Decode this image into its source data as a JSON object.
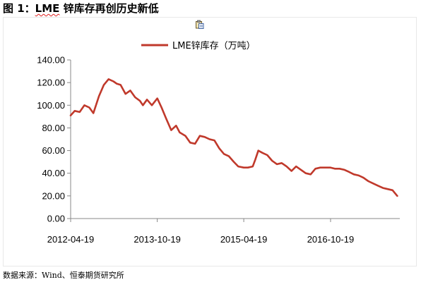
{
  "figure": {
    "title_prefix": "图 1：",
    "title_brand": "LME",
    "title_rest": " 锌库存再创历史新低",
    "source": "数据来源：Wind、恒泰期货研究所"
  },
  "icons": {
    "paste": "paste-clipboard-icon"
  },
  "colors": {
    "series": "#c0392b",
    "axis": "#888888"
  },
  "chart_data": {
    "type": "line",
    "title": "",
    "xlabel": "",
    "ylabel": "",
    "ylim": [
      0,
      140
    ],
    "yticks": [
      0,
      20,
      40,
      60,
      80,
      100,
      120,
      140
    ],
    "ytick_labels": [
      "0.00",
      "20.00",
      "40.00",
      "60.00",
      "80.00",
      "100.00",
      "120.00",
      "140.00"
    ],
    "xlim": [
      "2012-04-19",
      "2017-12-31"
    ],
    "xticks": [
      "2012-04-19",
      "2013-10-19",
      "2015-04-19",
      "2016-10-19"
    ],
    "grid": false,
    "legend": "top",
    "series": [
      {
        "name": "LME锌库存（万吨）",
        "x": [
          "2012-04-19",
          "2012-05-15",
          "2012-06-15",
          "2012-07-15",
          "2012-08-15",
          "2012-09-10",
          "2012-10-15",
          "2012-11-15",
          "2012-12-15",
          "2013-01-15",
          "2013-02-05",
          "2013-03-01",
          "2013-04-01",
          "2013-05-01",
          "2013-06-01",
          "2013-07-01",
          "2013-07-20",
          "2013-08-15",
          "2013-09-15",
          "2013-10-19",
          "2013-11-15",
          "2013-12-15",
          "2014-01-15",
          "2014-02-15",
          "2014-03-10",
          "2014-04-15",
          "2014-05-15",
          "2014-06-15",
          "2014-07-15",
          "2014-08-15",
          "2014-09-15",
          "2014-10-15",
          "2014-11-15",
          "2014-12-15",
          "2015-01-15",
          "2015-02-15",
          "2015-03-15",
          "2015-04-19",
          "2015-05-15",
          "2015-06-15",
          "2015-07-01",
          "2015-07-20",
          "2015-08-15",
          "2015-09-15",
          "2015-10-15",
          "2015-11-15",
          "2015-12-15",
          "2016-01-15",
          "2016-02-15",
          "2016-03-15",
          "2016-04-15",
          "2016-05-15",
          "2016-06-15",
          "2016-07-15",
          "2016-08-15",
          "2016-09-15",
          "2016-10-19",
          "2016-11-15",
          "2016-12-15",
          "2017-01-15",
          "2017-02-15",
          "2017-03-15",
          "2017-04-15",
          "2017-05-15",
          "2017-06-15",
          "2017-07-15",
          "2017-08-15",
          "2017-09-15",
          "2017-10-15",
          "2017-11-15",
          "2017-12-15"
        ],
        "values": [
          91,
          95,
          94,
          100,
          98,
          93,
          108,
          118,
          123,
          121,
          119,
          118,
          110,
          113,
          107,
          104,
          100,
          105,
          100,
          106,
          98,
          88,
          78,
          82,
          76,
          73,
          67,
          66,
          73,
          72,
          70,
          69,
          62,
          57,
          55,
          50,
          46,
          45,
          45,
          46,
          52,
          60,
          58,
          56,
          51,
          48,
          49,
          46,
          42,
          46,
          43,
          40,
          39,
          44,
          45,
          45,
          45,
          44,
          44,
          43,
          41,
          39,
          38,
          36,
          33,
          31,
          29,
          27,
          26,
          25,
          20
        ]
      }
    ]
  }
}
